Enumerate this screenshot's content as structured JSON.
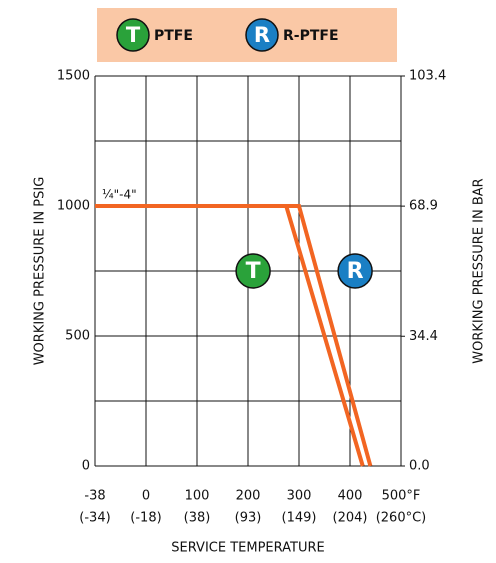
{
  "chart_data": {
    "type": "line",
    "series": [
      {
        "name": "PTFE",
        "badge": "T",
        "badge_color": "#2aa23a",
        "color": "#f26522",
        "x": [
          -38,
          275,
          425
        ],
        "values": [
          1000,
          1000,
          0
        ],
        "badge_at": [
          210,
          750
        ]
      },
      {
        "name": "R-PTFE",
        "badge": "R",
        "badge_color": "#1a7fc4",
        "color": "#f26522",
        "x": [
          -38,
          300,
          440
        ],
        "values": [
          1000,
          1000,
          0
        ],
        "badge_at": [
          410,
          750
        ]
      }
    ],
    "annotation": "¼\"-4\"",
    "xlabel": "SERVICE TEMPERATURE",
    "ylabel": "WORKING PRESSURE IN PSIG",
    "y2label": "WORKING PRESSURE IN BAR",
    "xlim": [
      -38,
      500
    ],
    "xticks": [
      -38,
      0,
      100,
      200,
      300,
      400,
      {
        "value": 500,
        "label": "500°F"
      }
    ],
    "xticks_celsius": [
      "(-34)",
      "(-18)",
      "(38)",
      "(93)",
      "(149)",
      "(204)",
      "(260°C)"
    ],
    "ylim": [
      0,
      1500
    ],
    "yticks": [
      0,
      500,
      1000,
      1500
    ],
    "y_minor_grid": [
      250,
      750,
      1250
    ],
    "y2lim": [
      0,
      103.4
    ],
    "y2ticks": [
      {
        "value": 0,
        "label": "0.0"
      },
      34.4,
      68.9,
      103.4
    ],
    "legend_color": "#fac8a6",
    "grid": true
  }
}
